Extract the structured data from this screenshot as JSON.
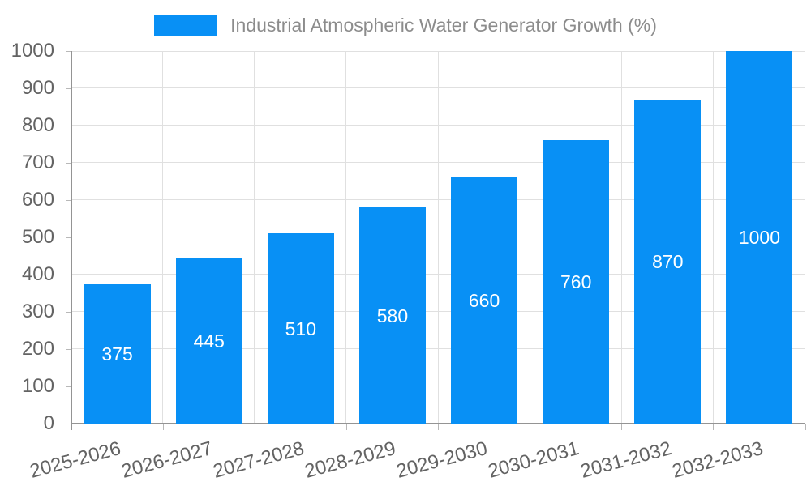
{
  "chart_data": {
    "type": "bar",
    "title": "Industrial Atmospheric Water Generator Growth (%)",
    "categories": [
      "2025-2026",
      "2026-2027",
      "2027-2028",
      "2028-2029",
      "2029-2030",
      "2030-2031",
      "2031-2032",
      "2032-2033"
    ],
    "values": [
      375,
      445,
      510,
      580,
      660,
      760,
      870,
      1000
    ],
    "xlabel": "",
    "ylabel": "",
    "ylim": [
      0,
      1000
    ],
    "yticks": [
      0,
      100,
      200,
      300,
      400,
      500,
      600,
      700,
      800,
      900,
      1000
    ],
    "grid": true,
    "bar_labels_visible": true,
    "x_label_rotation_deg": -15,
    "legend": {
      "position": "top",
      "label": "Industrial Atmospheric Water Generator Growth (%)"
    },
    "colors": {
      "bar": "#0890f5",
      "bar_label_text": "#ffffff",
      "axis_line": "#949494",
      "grid_line": "#e0e0e0",
      "tick_mark": "#b8b8b8",
      "axis_tick_label_text": "#636363",
      "legend_text": "#8c8c8c",
      "background": "#ffffff"
    }
  }
}
